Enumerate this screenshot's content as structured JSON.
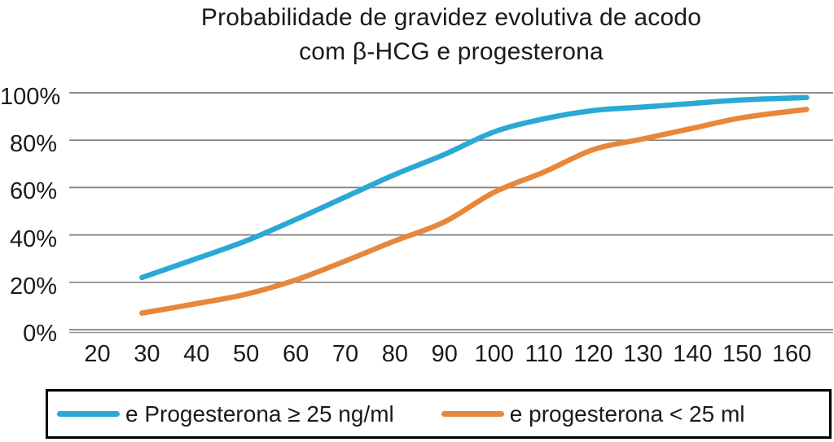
{
  "chart_data": {
    "type": "line",
    "title": "Probabilidade de gravidez evolutiva de acodo com β-HCG e progesterona",
    "title_lines": [
      "Probabilidade de gravidez evolutiva de acodo",
      "com β-HCG e progesterona"
    ],
    "x_axis": {
      "tick_values": [
        20,
        30,
        40,
        50,
        60,
        70,
        80,
        90,
        100,
        110,
        120,
        130,
        140,
        150,
        160
      ],
      "tick_labels": [
        "20",
        "30",
        "40",
        "50",
        "60",
        "70",
        "80",
        "90",
        "100",
        "110",
        "120",
        "130",
        "140",
        "150",
        "160"
      ],
      "label": ""
    },
    "y_axis": {
      "tick_values": [
        0,
        20,
        40,
        60,
        80,
        100
      ],
      "tick_labels": [
        "0%",
        "20%",
        "40%",
        "60%",
        "80%",
        "100%"
      ],
      "min": 0,
      "max": 100,
      "unit": "%"
    },
    "grid": "horizontal",
    "legend_position": "bottom",
    "series": [
      {
        "name": "e Progesterona ≥ 25 ng/ml",
        "color": "#2aa9d4",
        "points": [
          [
            29,
            22
          ],
          [
            40,
            30
          ],
          [
            50,
            37.5
          ],
          [
            60,
            46.5
          ],
          [
            70,
            56
          ],
          [
            80,
            65.5
          ],
          [
            90,
            74
          ],
          [
            100,
            83.5
          ],
          [
            110,
            89
          ],
          [
            120,
            92.5
          ],
          [
            130,
            94
          ],
          [
            140,
            95.5
          ],
          [
            150,
            97
          ],
          [
            163,
            98
          ]
        ]
      },
      {
        "name": "e progesterona < 25 ml",
        "color": "#e8873a",
        "points": [
          [
            29,
            7
          ],
          [
            40,
            11
          ],
          [
            50,
            15
          ],
          [
            60,
            21
          ],
          [
            70,
            29
          ],
          [
            80,
            37.5
          ],
          [
            90,
            45.5
          ],
          [
            100,
            58
          ],
          [
            110,
            66.5
          ],
          [
            120,
            76
          ],
          [
            130,
            80.5
          ],
          [
            140,
            85
          ],
          [
            150,
            89.5
          ],
          [
            163,
            93
          ]
        ]
      }
    ],
    "colors": {
      "gridline": "#7f7f7f",
      "axis_line": "#999999",
      "text": "#1a1a1a",
      "legend_border": "#000000",
      "background": "#ffffff"
    }
  }
}
